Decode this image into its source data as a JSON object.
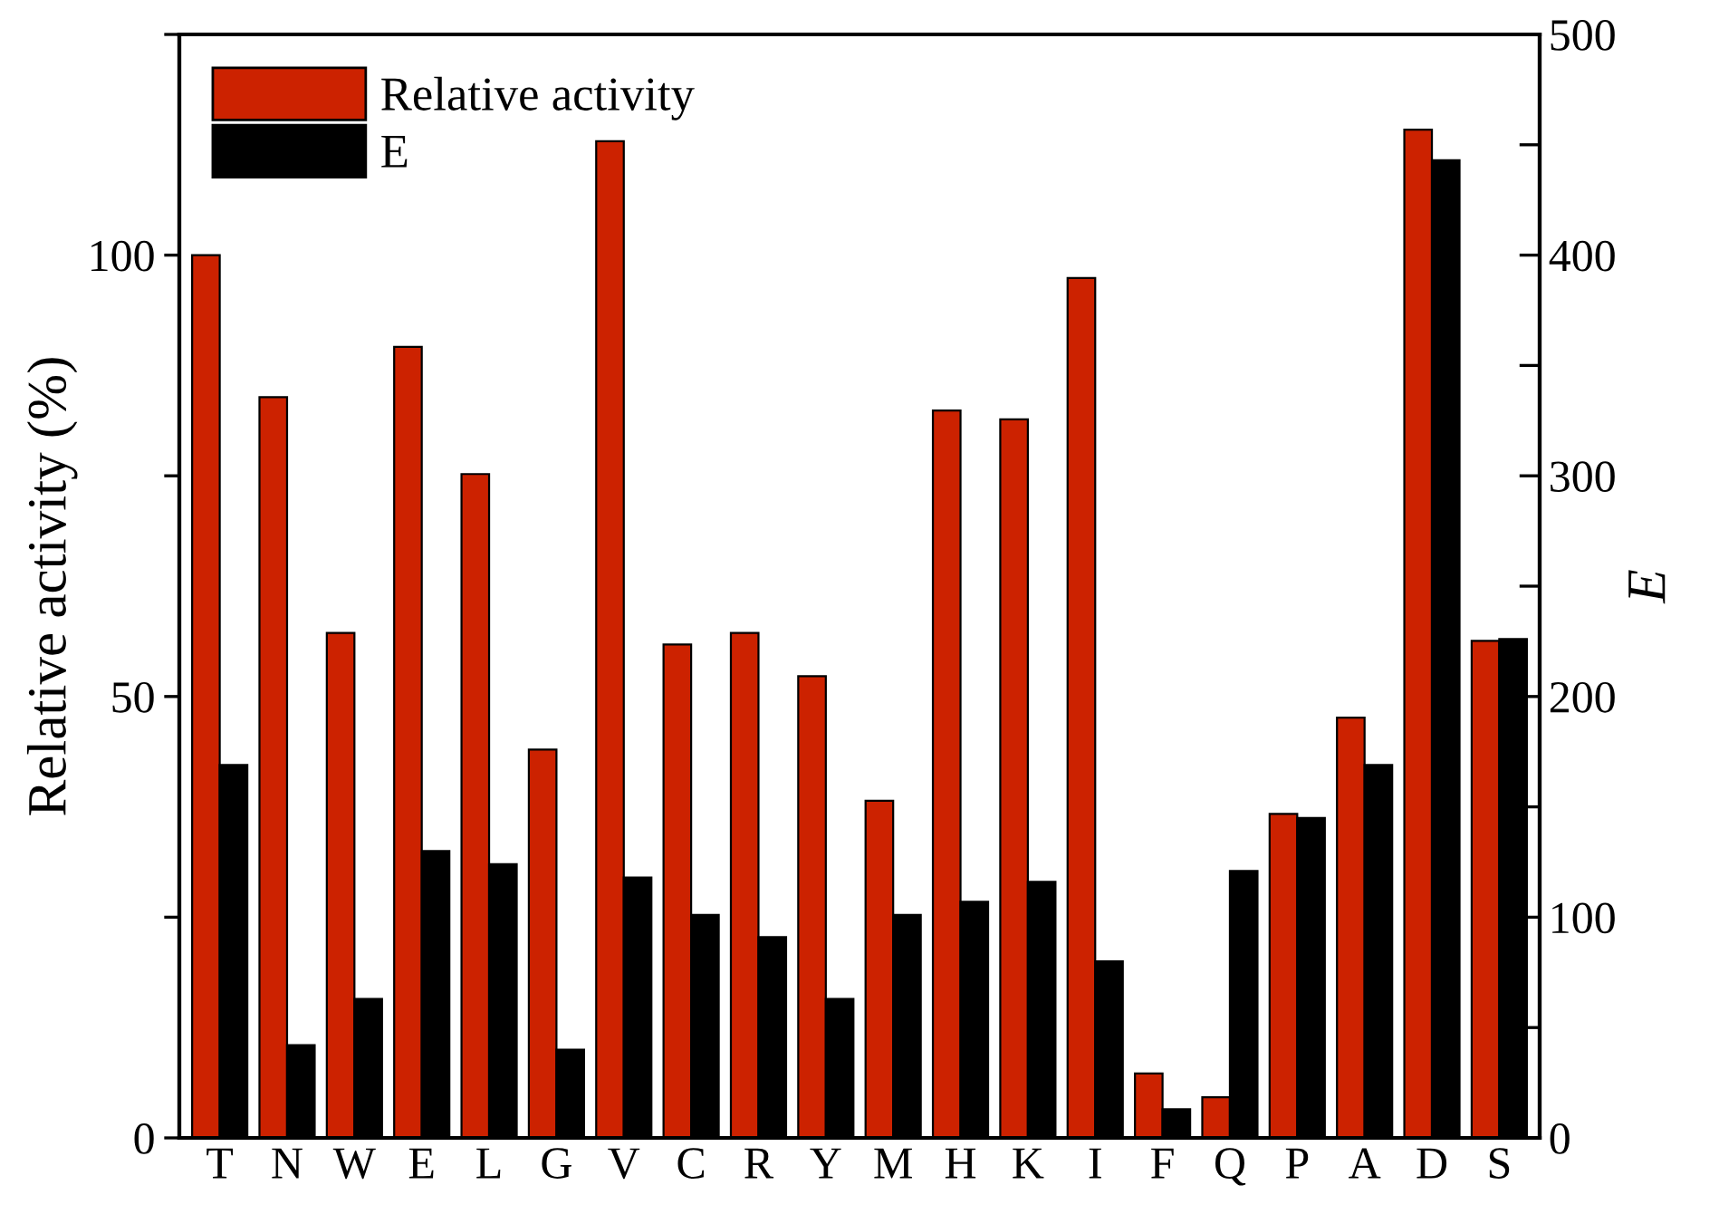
{
  "chart_data": {
    "type": "bar",
    "xlabel": null,
    "ylabel": "Relative activity (%)",
    "y2label": "E",
    "categories": [
      "T",
      "N",
      "W",
      "E",
      "L",
      "G",
      "V",
      "C",
      "R",
      "Y",
      "M",
      "H",
      "K",
      "I",
      "F",
      "Q",
      "P",
      "A",
      "D",
      "S"
    ],
    "series": [
      {
        "name": "Relative activity",
        "color": "#cc2200",
        "values": [
          100,
          83.9,
          57.2,
          89.6,
          75.2,
          44.0,
          112.9,
          55.9,
          57.2,
          52.3,
          38.2,
          82.4,
          81.4,
          97.4,
          7.3,
          4.6,
          36.7,
          47.6,
          114.2,
          56.3
        ]
      },
      {
        "name": "E",
        "color": "#000000",
        "axis": "y2",
        "values": [
          169,
          42,
          63,
          130,
          124,
          40,
          118,
          101,
          91,
          63,
          101,
          107,
          116,
          80,
          13,
          121,
          145,
          169,
          443,
          226
        ]
      }
    ],
    "ylim": [
      0,
      125
    ],
    "yticks": [
      0,
      {
        "value": 25,
        "label": null
      },
      50,
      {
        "value": 75,
        "label": null
      },
      100,
      {
        "value": 125,
        "label": null
      }
    ],
    "y2lim": [
      0,
      500
    ],
    "y2ticks": [
      0,
      {
        "value": 50,
        "label": null
      },
      100,
      {
        "value": 150,
        "label": null
      },
      200,
      {
        "value": 250,
        "label": null
      },
      300,
      {
        "value": 350,
        "label": null
      },
      400,
      {
        "value": 450,
        "label": null
      },
      500
    ],
    "legend": "top left",
    "grid": false
  }
}
